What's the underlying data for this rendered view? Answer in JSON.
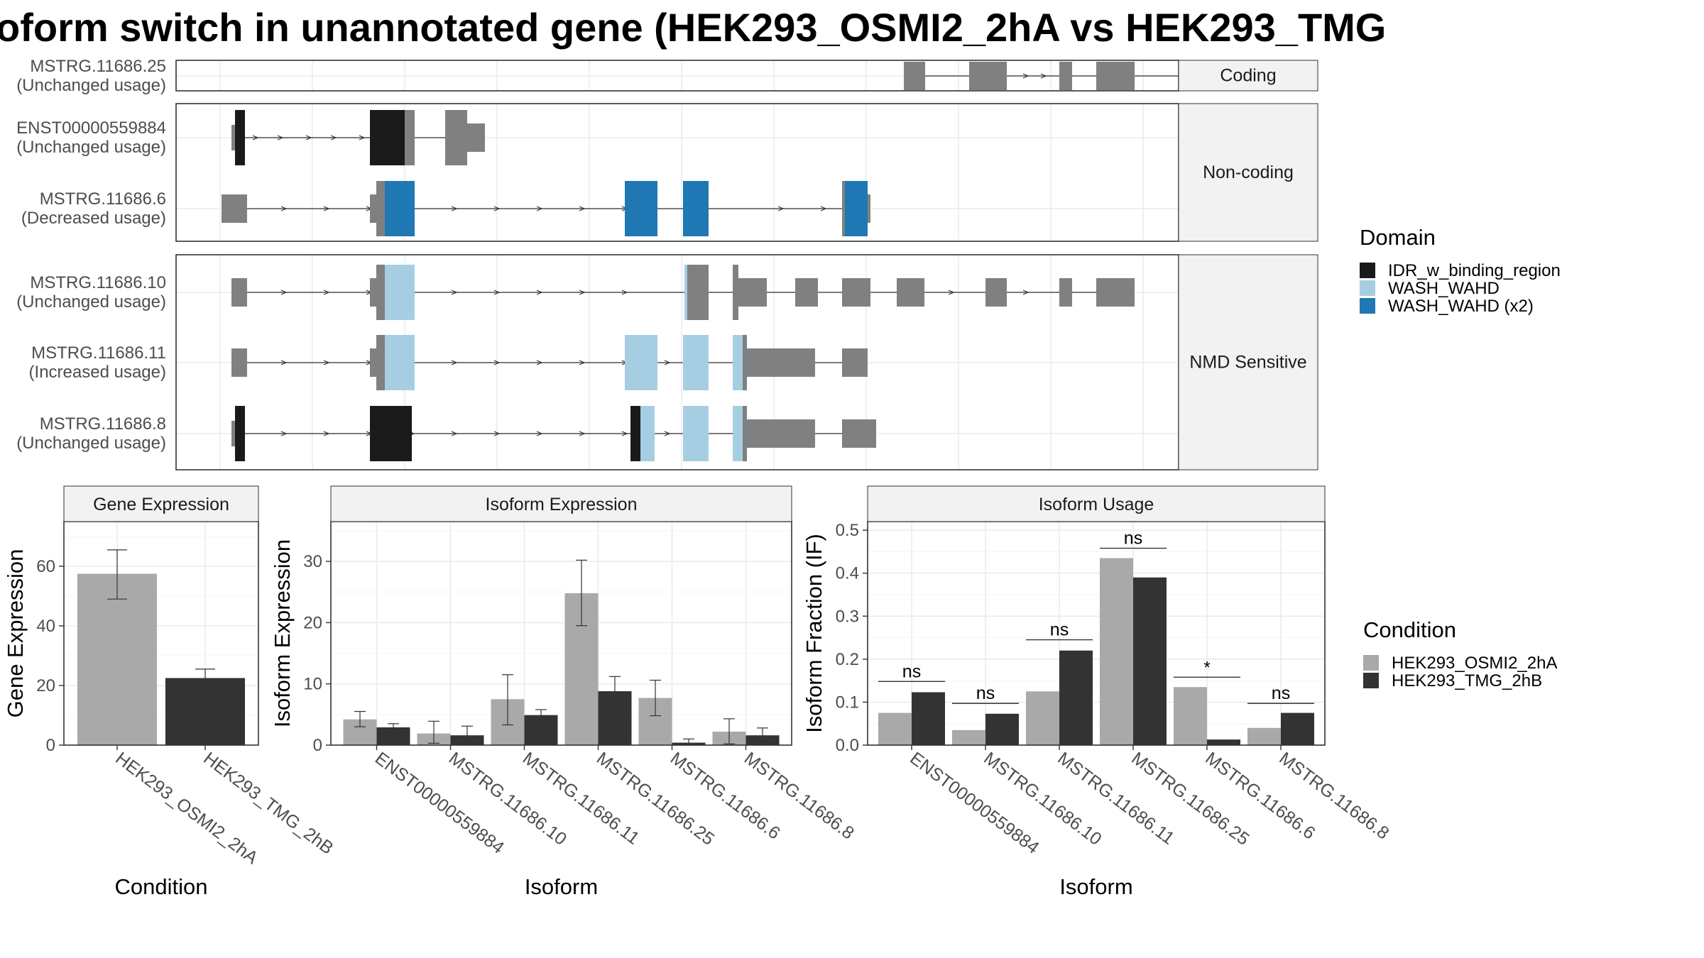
{
  "title": "oform switch in unannotated gene (HEK293_OSMI2_2hA vs HEK293_TMG",
  "colors": {
    "exon": "#808080",
    "idr": "#1a1a1a",
    "wash_light": "#a6cee3",
    "wash_dark": "#1f78b4",
    "cond_a": "#a9a9a9",
    "cond_b": "#333333",
    "grid": "#ebebeb",
    "strip": "#f2f2f2",
    "panel_border": "#333333"
  },
  "transcripts": {
    "panels": [
      {
        "label": "Coding",
        "transcripts": [
          {
            "id": "MSTRG.11686.25",
            "usage": "(Unchanged usage)"
          }
        ]
      },
      {
        "label": "Non-coding",
        "transcripts": [
          {
            "id": "ENST00000559884",
            "usage": "(Unchanged usage)"
          },
          {
            "id": "MSTRG.11686.6",
            "usage": "(Decreased usage)"
          }
        ]
      },
      {
        "label": "NMD Sensitive",
        "transcripts": [
          {
            "id": "MSTRG.11686.10",
            "usage": "(Unchanged usage)"
          },
          {
            "id": "MSTRG.11686.11",
            "usage": "(Increased usage)"
          },
          {
            "id": "MSTRG.11686.8",
            "usage": "(Unchanged usage)"
          }
        ]
      }
    ]
  },
  "legends": {
    "domain": {
      "title": "Domain",
      "items": [
        {
          "label": "IDR_w_binding_region",
          "color": "#1a1a1a"
        },
        {
          "label": "WASH_WAHD",
          "color": "#a6cee3"
        },
        {
          "label": "WASH_WAHD (x2)",
          "color": "#1f78b4"
        }
      ]
    },
    "condition": {
      "title": "Condition",
      "items": [
        {
          "label": "HEK293_OSMI2_2hA",
          "color": "#a9a9a9"
        },
        {
          "label": "HEK293_TMG_2hB",
          "color": "#333333"
        }
      ]
    }
  },
  "chart_data": [
    {
      "type": "bar",
      "title": "Gene Expression",
      "xlabel": "Condition",
      "ylabel": "Gene Expression",
      "categories": [
        "HEK293_OSMI2_2hA",
        "HEK293_TMG_2hB"
      ],
      "values": [
        57.5,
        22.5
      ],
      "error_low": [
        49,
        19.5
      ],
      "error_high": [
        65.5,
        25.5
      ],
      "ylim": [
        0,
        75
      ],
      "yticks": [
        0,
        20,
        40,
        60
      ]
    },
    {
      "type": "bar",
      "title": "Isoform Expression",
      "xlabel": "Isoform",
      "ylabel": "Isoform Expression",
      "categories": [
        "ENST00000559884",
        "MSTRG.11686.10",
        "MSTRG.11686.11",
        "MSTRG.11686.25",
        "MSTRG.11686.6",
        "MSTRG.11686.8"
      ],
      "series": [
        {
          "name": "HEK293_OSMI2_2hA",
          "values": [
            4.2,
            1.9,
            7.5,
            24.8,
            7.7,
            2.2
          ],
          "error_low": [
            3.0,
            0.3,
            3.3,
            19.5,
            4.8,
            0.2
          ],
          "error_high": [
            5.5,
            3.9,
            11.5,
            30.2,
            10.6,
            4.3
          ]
        },
        {
          "name": "HEK293_TMG_2hB",
          "values": [
            2.9,
            1.6,
            4.9,
            8.8,
            0.4,
            1.6
          ],
          "error_low": [
            2.3,
            0.3,
            4.1,
            6.5,
            0.1,
            0.6
          ],
          "error_high": [
            3.5,
            3.1,
            5.8,
            11.2,
            1.0,
            2.8
          ]
        }
      ],
      "ylim": [
        0,
        36.5
      ],
      "yticks": [
        0,
        10,
        20,
        30
      ]
    },
    {
      "type": "bar",
      "title": "Isoform Usage",
      "xlabel": "Isoform",
      "ylabel": "Isoform Fraction (IF)",
      "categories": [
        "ENST00000559884",
        "MSTRG.11686.10",
        "MSTRG.11686.11",
        "MSTRG.11686.25",
        "MSTRG.11686.6",
        "MSTRG.11686.8"
      ],
      "series": [
        {
          "name": "HEK293_OSMI2_2hA",
          "values": [
            0.075,
            0.035,
            0.125,
            0.435,
            0.135,
            0.04
          ]
        },
        {
          "name": "HEK293_TMG_2hB",
          "values": [
            0.123,
            0.073,
            0.22,
            0.39,
            0.013,
            0.075
          ]
        }
      ],
      "significance": [
        {
          "label": "ns",
          "y": 0.148
        },
        {
          "label": "ns",
          "y": 0.097
        },
        {
          "label": "ns",
          "y": 0.245
        },
        {
          "label": "ns",
          "y": 0.458
        },
        {
          "label": "*",
          "y": 0.158
        },
        {
          "label": "ns",
          "y": 0.097
        }
      ],
      "ylim": [
        0,
        0.52
      ],
      "yticks": [
        0.0,
        0.1,
        0.2,
        0.3,
        0.4,
        0.5
      ],
      "ytick_labels": [
        "0.0",
        "0.1",
        "0.2",
        "0.3",
        "0.4",
        "0.5"
      ]
    }
  ]
}
